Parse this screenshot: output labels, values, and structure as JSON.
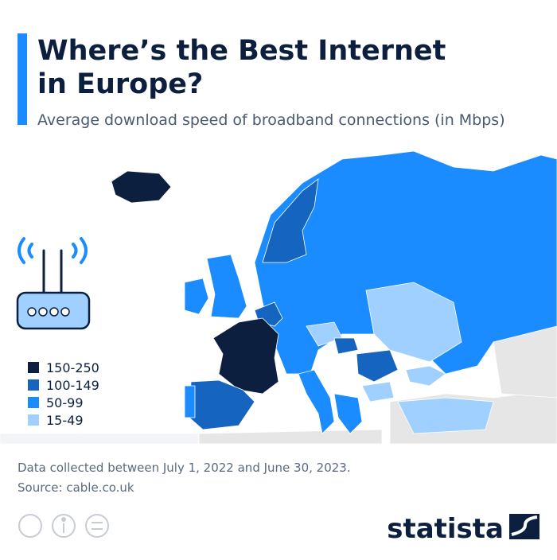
{
  "header": {
    "title_lines": [
      "Where’s the Best Internet",
      "in Europe?"
    ],
    "subtitle": "Average download speed of broadband connections (in Mbps)"
  },
  "legend": [
    {
      "label": "150-250",
      "color": "#0c1f3f"
    },
    {
      "label": "100-149",
      "color": "#1565c0"
    },
    {
      "label": "50-99",
      "color": "#1a8cff"
    },
    {
      "label": "15-49",
      "color": "#9fd0ff"
    }
  ],
  "footer": {
    "note": "Data collected between July 1, 2022 and June 30, 2023.",
    "source": "Source: cable.co.uk",
    "brand": "statista"
  }
}
